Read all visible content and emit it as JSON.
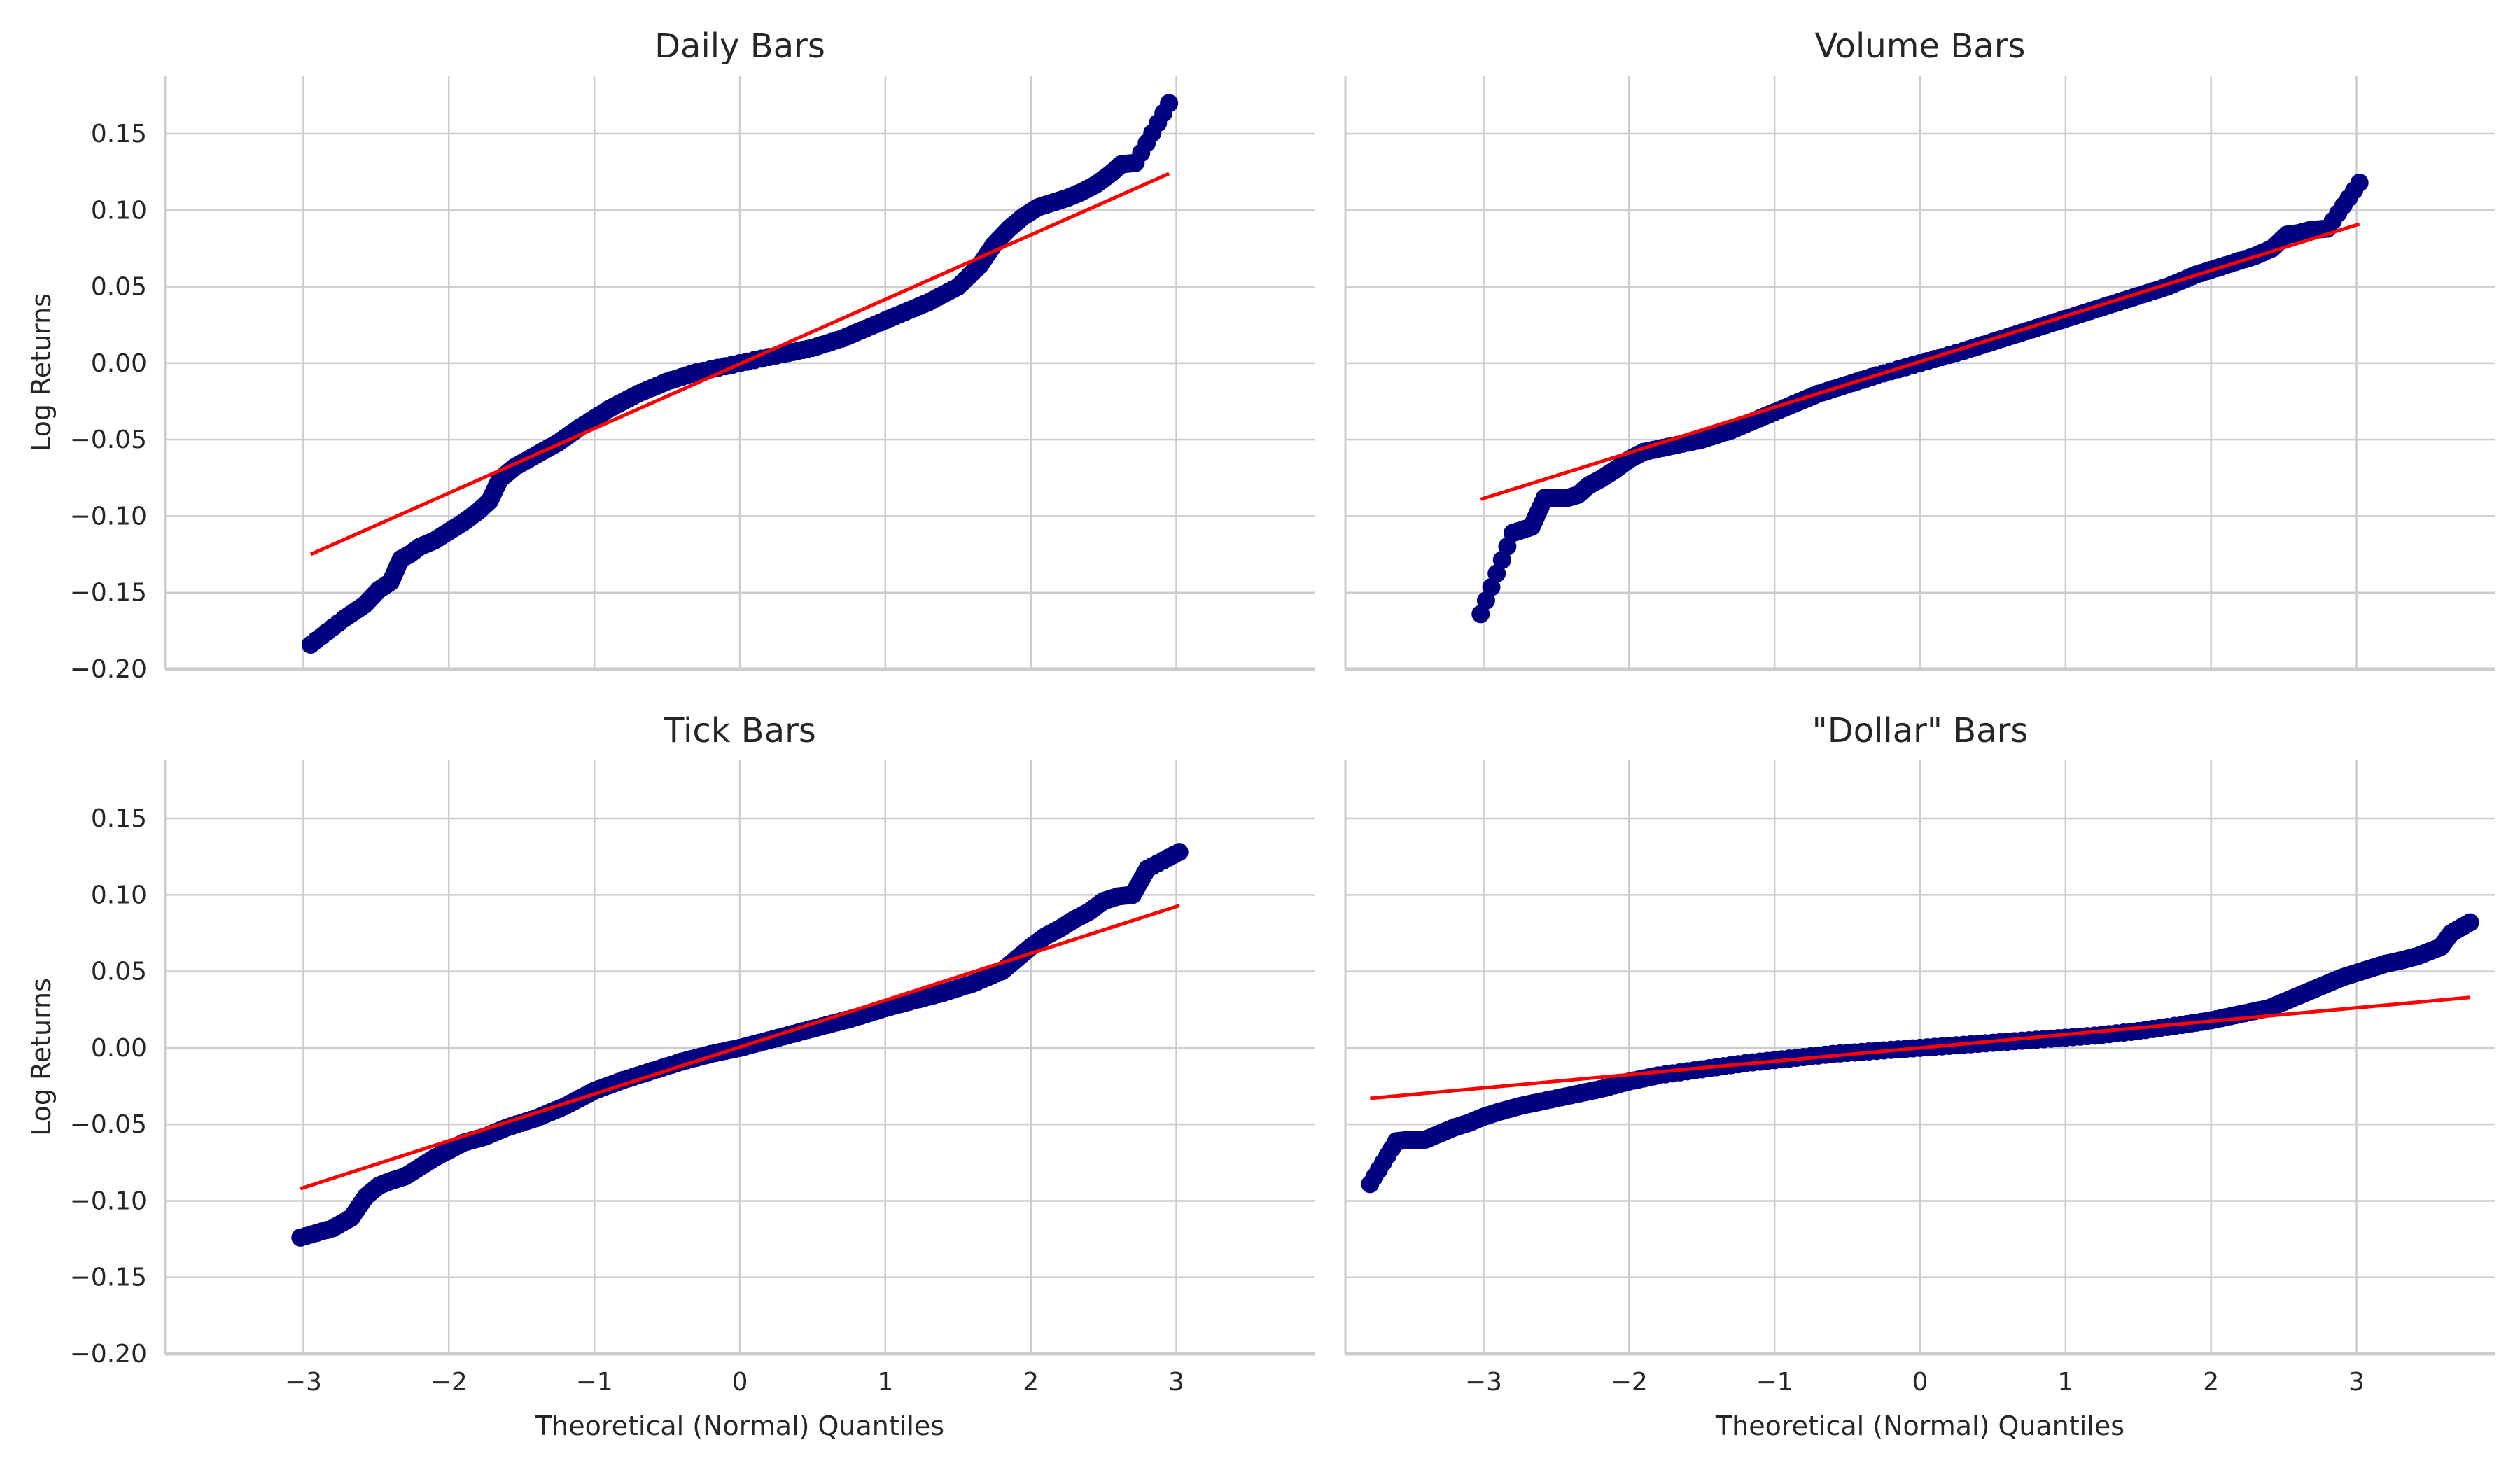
{
  "chart_data": [
    {
      "type": "scatter",
      "title": "Daily Bars",
      "xlabel": "",
      "ylabel": "Log Returns",
      "xlim": [
        -3.95,
        3.95
      ],
      "ylim": [
        -0.2,
        0.188
      ],
      "xticks": [
        -3,
        -2,
        -1,
        0,
        1,
        2,
        3
      ],
      "yticks": [
        -0.2,
        -0.15,
        -0.1,
        -0.05,
        0.0,
        0.05,
        0.1,
        0.15
      ],
      "xtick_labels": [
        "",
        "",
        "",
        "",
        "",
        "",
        ""
      ],
      "ytick_labels": [
        "−0.20",
        "−0.15",
        "−0.10",
        "−0.05",
        "0.00",
        "0.05",
        "0.10",
        "0.15"
      ],
      "grid": true,
      "point_color": "#000080",
      "line_color": "#ff0000",
      "fit_line": {
        "x": [
          -2.95,
          2.95
        ],
        "y": [
          -0.125,
          0.124
        ]
      },
      "points": [
        [
          -2.95,
          -0.184
        ],
        [
          -2.72,
          -0.167
        ],
        [
          -2.58,
          -0.158
        ],
        [
          -2.48,
          -0.148
        ],
        [
          -2.4,
          -0.143
        ],
        [
          -2.33,
          -0.128
        ],
        [
          -2.27,
          -0.125
        ],
        [
          -2.2,
          -0.12
        ],
        [
          -2.1,
          -0.116
        ],
        [
          -2.0,
          -0.11
        ],
        [
          -1.9,
          -0.104
        ],
        [
          -1.8,
          -0.097
        ],
        [
          -1.72,
          -0.09
        ],
        [
          -1.65,
          -0.076
        ],
        [
          -1.55,
          -0.068
        ],
        [
          -1.4,
          -0.06
        ],
        [
          -1.25,
          -0.052
        ],
        [
          -1.1,
          -0.042
        ],
        [
          -0.9,
          -0.03
        ],
        [
          -0.7,
          -0.02
        ],
        [
          -0.5,
          -0.012
        ],
        [
          -0.3,
          -0.006
        ],
        [
          0.0,
          0.0
        ],
        [
          0.3,
          0.006
        ],
        [
          0.5,
          0.01
        ],
        [
          0.7,
          0.016
        ],
        [
          0.9,
          0.024
        ],
        [
          1.1,
          0.032
        ],
        [
          1.3,
          0.04
        ],
        [
          1.5,
          0.05
        ],
        [
          1.65,
          0.064
        ],
        [
          1.75,
          0.078
        ],
        [
          1.85,
          0.088
        ],
        [
          1.95,
          0.096
        ],
        [
          2.05,
          0.102
        ],
        [
          2.15,
          0.105
        ],
        [
          2.25,
          0.108
        ],
        [
          2.35,
          0.112
        ],
        [
          2.45,
          0.117
        ],
        [
          2.55,
          0.124
        ],
        [
          2.62,
          0.13
        ],
        [
          2.72,
          0.131
        ],
        [
          2.95,
          0.17
        ]
      ]
    },
    {
      "type": "scatter",
      "title": "Volume Bars",
      "xlabel": "",
      "ylabel": "",
      "xlim": [
        -3.95,
        3.95
      ],
      "ylim": [
        -0.2,
        0.188
      ],
      "xticks": [
        -3,
        -2,
        -1,
        0,
        1,
        2,
        3
      ],
      "yticks": [
        -0.2,
        -0.15,
        -0.1,
        -0.05,
        0.0,
        0.05,
        0.1,
        0.15
      ],
      "xtick_labels": [
        "",
        "",
        "",
        "",
        "",
        "",
        ""
      ],
      "ytick_labels": [
        "",
        "",
        "",
        "",
        "",
        "",
        "",
        ""
      ],
      "grid": true,
      "point_color": "#000080",
      "line_color": "#ff0000",
      "fit_line": {
        "x": [
          -3.02,
          3.02
        ],
        "y": [
          -0.089,
          0.091
        ]
      },
      "points": [
        [
          -3.02,
          -0.164
        ],
        [
          -2.8,
          -0.111
        ],
        [
          -2.67,
          -0.107
        ],
        [
          -2.58,
          -0.088
        ],
        [
          -2.5,
          -0.088
        ],
        [
          -2.42,
          -0.088
        ],
        [
          -2.35,
          -0.086
        ],
        [
          -2.28,
          -0.08
        ],
        [
          -2.2,
          -0.076
        ],
        [
          -2.1,
          -0.07
        ],
        [
          -2.0,
          -0.063
        ],
        [
          -1.9,
          -0.058
        ],
        [
          -1.7,
          -0.054
        ],
        [
          -1.5,
          -0.05
        ],
        [
          -1.3,
          -0.044
        ],
        [
          -1.1,
          -0.036
        ],
        [
          -0.9,
          -0.028
        ],
        [
          -0.7,
          -0.02
        ],
        [
          -0.5,
          -0.014
        ],
        [
          -0.3,
          -0.008
        ],
        [
          0.0,
          0.0
        ],
        [
          0.3,
          0.008
        ],
        [
          0.5,
          0.014
        ],
        [
          0.7,
          0.02
        ],
        [
          0.9,
          0.026
        ],
        [
          1.1,
          0.032
        ],
        [
          1.3,
          0.038
        ],
        [
          1.5,
          0.044
        ],
        [
          1.7,
          0.05
        ],
        [
          1.9,
          0.058
        ],
        [
          2.1,
          0.064
        ],
        [
          2.3,
          0.07
        ],
        [
          2.42,
          0.075
        ],
        [
          2.52,
          0.084
        ],
        [
          2.6,
          0.085
        ],
        [
          2.68,
          0.087
        ],
        [
          2.8,
          0.088
        ],
        [
          3.02,
          0.118
        ]
      ]
    },
    {
      "type": "scatter",
      "title": "Tick Bars",
      "xlabel": "Theoretical (Normal) Quantiles",
      "ylabel": "Log Returns",
      "xlim": [
        -3.95,
        3.95
      ],
      "ylim": [
        -0.2,
        0.188
      ],
      "xticks": [
        -3,
        -2,
        -1,
        0,
        1,
        2,
        3
      ],
      "yticks": [
        -0.2,
        -0.15,
        -0.1,
        -0.05,
        0.0,
        0.05,
        0.1,
        0.15
      ],
      "xtick_labels": [
        "−3",
        "−2",
        "−1",
        "0",
        "1",
        "2",
        "3"
      ],
      "ytick_labels": [
        "−0.20",
        "−0.15",
        "−0.10",
        "−0.05",
        "0.00",
        "0.05",
        "0.10",
        "0.15"
      ],
      "grid": true,
      "point_color": "#000080",
      "line_color": "#ff0000",
      "fit_line": {
        "x": [
          -3.02,
          3.02
        ],
        "y": [
          -0.092,
          0.093
        ]
      },
      "points": [
        [
          -3.02,
          -0.124
        ],
        [
          -2.8,
          -0.118
        ],
        [
          -2.67,
          -0.111
        ],
        [
          -2.57,
          -0.097
        ],
        [
          -2.48,
          -0.09
        ],
        [
          -2.4,
          -0.087
        ],
        [
          -2.3,
          -0.084
        ],
        [
          -2.2,
          -0.078
        ],
        [
          -2.1,
          -0.072
        ],
        [
          -2.0,
          -0.067
        ],
        [
          -1.9,
          -0.062
        ],
        [
          -1.75,
          -0.058
        ],
        [
          -1.6,
          -0.052
        ],
        [
          -1.4,
          -0.046
        ],
        [
          -1.2,
          -0.038
        ],
        [
          -1.0,
          -0.028
        ],
        [
          -0.8,
          -0.021
        ],
        [
          -0.6,
          -0.015
        ],
        [
          -0.4,
          -0.009
        ],
        [
          -0.2,
          -0.004
        ],
        [
          0.0,
          0.0
        ],
        [
          0.2,
          0.005
        ],
        [
          0.4,
          0.01
        ],
        [
          0.6,
          0.015
        ],
        [
          0.8,
          0.02
        ],
        [
          1.0,
          0.026
        ],
        [
          1.2,
          0.031
        ],
        [
          1.4,
          0.036
        ],
        [
          1.6,
          0.042
        ],
        [
          1.8,
          0.05
        ],
        [
          1.9,
          0.058
        ],
        [
          2.0,
          0.066
        ],
        [
          2.1,
          0.073
        ],
        [
          2.2,
          0.078
        ],
        [
          2.3,
          0.084
        ],
        [
          2.4,
          0.089
        ],
        [
          2.5,
          0.096
        ],
        [
          2.6,
          0.099
        ],
        [
          2.7,
          0.1
        ],
        [
          2.8,
          0.117
        ],
        [
          3.02,
          0.128
        ]
      ]
    },
    {
      "type": "scatter",
      "title": "\"Dollar\" Bars",
      "xlabel": "Theoretical (Normal) Quantiles",
      "ylabel": "",
      "xlim": [
        -3.95,
        3.95
      ],
      "ylim": [
        -0.2,
        0.188
      ],
      "xticks": [
        -3,
        -2,
        -1,
        0,
        1,
        2,
        3
      ],
      "yticks": [
        -0.2,
        -0.15,
        -0.1,
        -0.05,
        0.0,
        0.05,
        0.1,
        0.15
      ],
      "xtick_labels": [
        "−3",
        "−2",
        "−1",
        "0",
        "1",
        "2",
        "3"
      ],
      "ytick_labels": [
        "",
        "",
        "",
        "",
        "",
        "",
        "",
        ""
      ],
      "grid": true,
      "point_color": "#000080",
      "line_color": "#ff0000",
      "fit_line": {
        "x": [
          -3.78,
          3.78
        ],
        "y": [
          -0.033,
          0.033
        ]
      },
      "points": [
        [
          -3.78,
          -0.089
        ],
        [
          -3.6,
          -0.061
        ],
        [
          -3.5,
          -0.06
        ],
        [
          -3.4,
          -0.06
        ],
        [
          -3.3,
          -0.056
        ],
        [
          -3.2,
          -0.052
        ],
        [
          -3.1,
          -0.049
        ],
        [
          -3.0,
          -0.045
        ],
        [
          -2.9,
          -0.042
        ],
        [
          -2.75,
          -0.038
        ],
        [
          -2.6,
          -0.035
        ],
        [
          -2.4,
          -0.031
        ],
        [
          -2.2,
          -0.027
        ],
        [
          -2.0,
          -0.022
        ],
        [
          -1.8,
          -0.018
        ],
        [
          -1.5,
          -0.014
        ],
        [
          -1.2,
          -0.01
        ],
        [
          -0.9,
          -0.007
        ],
        [
          -0.6,
          -0.004
        ],
        [
          -0.3,
          -0.002
        ],
        [
          0.0,
          0.0
        ],
        [
          0.3,
          0.002
        ],
        [
          0.6,
          0.004
        ],
        [
          0.9,
          0.006
        ],
        [
          1.2,
          0.008
        ],
        [
          1.5,
          0.011
        ],
        [
          1.8,
          0.015
        ],
        [
          2.0,
          0.018
        ],
        [
          2.2,
          0.022
        ],
        [
          2.4,
          0.026
        ],
        [
          2.5,
          0.03
        ],
        [
          2.6,
          0.034
        ],
        [
          2.7,
          0.038
        ],
        [
          2.8,
          0.042
        ],
        [
          2.9,
          0.046
        ],
        [
          3.0,
          0.049
        ],
        [
          3.1,
          0.052
        ],
        [
          3.2,
          0.055
        ],
        [
          3.3,
          0.057
        ],
        [
          3.42,
          0.06
        ],
        [
          3.5,
          0.063
        ],
        [
          3.58,
          0.066
        ],
        [
          3.65,
          0.075
        ],
        [
          3.78,
          0.082
        ]
      ]
    }
  ]
}
